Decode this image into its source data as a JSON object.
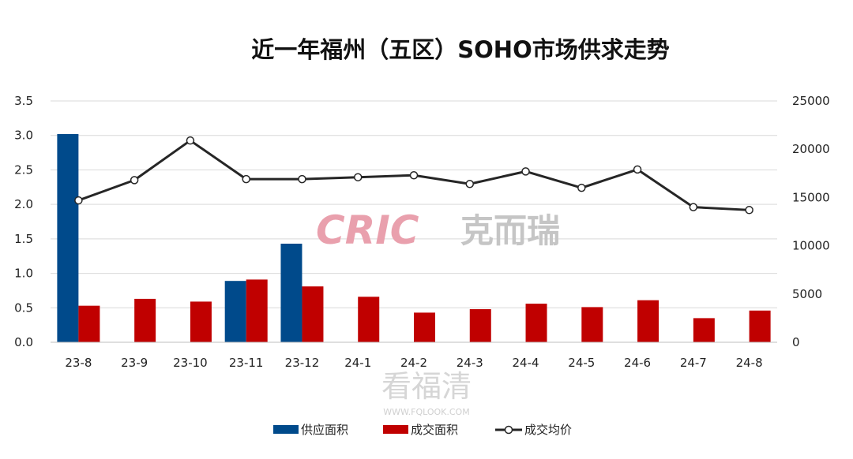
{
  "chart_data": {
    "type": "bar",
    "title": "近一年福州（五区）SOHO市场供求走势",
    "categories": [
      "23-8",
      "23-9",
      "23-10",
      "23-11",
      "23-12",
      "24-1",
      "24-2",
      "24-3",
      "24-4",
      "24-5",
      "24-6",
      "24-7",
      "24-8"
    ],
    "series": [
      {
        "name": "供应面积",
        "type": "bar",
        "axis": "left",
        "color": "#004a8b",
        "values": [
          3.02,
          0,
          0,
          0.89,
          1.43,
          0,
          0,
          0,
          0,
          0,
          0,
          0,
          0
        ]
      },
      {
        "name": "成交面积",
        "type": "bar",
        "axis": "left",
        "color": "#c00000",
        "values": [
          0.53,
          0.63,
          0.59,
          0.91,
          0.81,
          0.66,
          0.43,
          0.48,
          0.56,
          0.51,
          0.61,
          0.35,
          0.46
        ]
      },
      {
        "name": "成交均价",
        "type": "line",
        "axis": "right",
        "color": "#262626",
        "values": [
          14700,
          16800,
          20900,
          16900,
          16900,
          17100,
          17300,
          16400,
          17700,
          16000,
          17900,
          14000,
          13700
        ]
      }
    ],
    "y_left": {
      "min": 0,
      "max": 3.5,
      "step": 0.5,
      "ticks": [
        "0.0",
        "0.5",
        "1.0",
        "1.5",
        "2.0",
        "2.5",
        "3.0",
        "3.5"
      ]
    },
    "y_right": {
      "min": 0,
      "max": 25000,
      "step": 5000,
      "ticks": [
        "0",
        "5000",
        "10000",
        "15000",
        "20000",
        "25000"
      ]
    },
    "grid": true,
    "legend_position": "bottom"
  },
  "watermarks": {
    "logo_latin": "CRIC",
    "logo_cjk": "克而瑞",
    "site_big": "看福清",
    "site_url": "WWW.FQLOOK.COM"
  }
}
